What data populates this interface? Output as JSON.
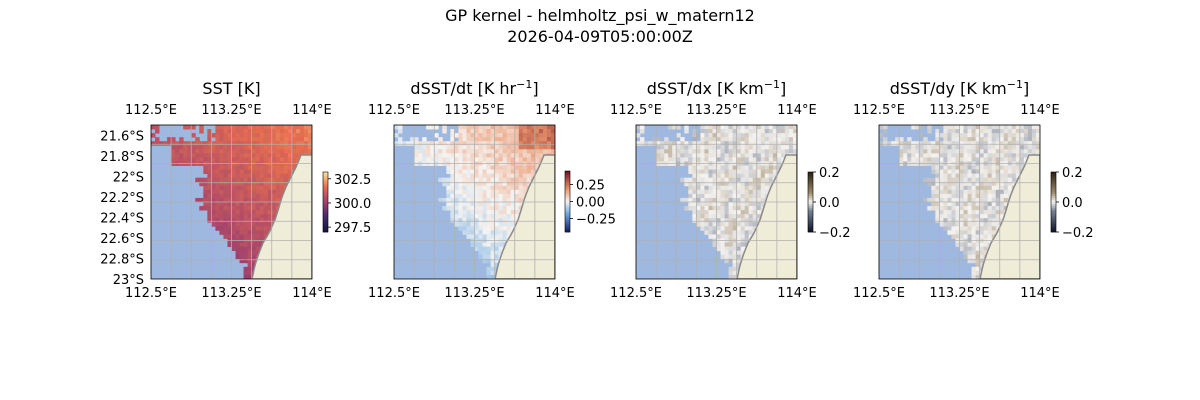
{
  "figure": {
    "title_line1": "GP kernel - helmholtz_psi_w_matern12",
    "title_line2": "2026-04-09T05:00:00Z"
  },
  "colors": {
    "ocean_mask": "#9fb8e0",
    "land": "#efecd8",
    "coastline": "#8a8a8a",
    "grid": "#b0b0b0"
  },
  "chart_data": [
    {
      "type": "heatmap",
      "title": "SST [K]",
      "xlabel": "",
      "ylabel": "",
      "xlim": [
        112.5,
        114.0
      ],
      "ylim": [
        -23.0,
        -21.5
      ],
      "x_ticks": [
        112.5,
        113.25,
        114.0
      ],
      "x_tick_labels": [
        "112.5°E",
        "113.25°E",
        "114°E"
      ],
      "y_ticks": [
        -21.6,
        -21.8,
        -22.0,
        -22.2,
        -22.4,
        -22.6,
        -22.8,
        -23.0
      ],
      "y_tick_labels": [
        "21.6°S",
        "21.8°S",
        "22°S",
        "22.2°S",
        "22.4°S",
        "22.6°S",
        "22.8°S",
        "23°S"
      ],
      "colorbar": {
        "min": 297.0,
        "max": 303.2,
        "ticks": [
          302.5,
          300.0,
          297.5
        ],
        "tick_labels": [
          "302.5",
          "300.0",
          "297.5"
        ],
        "colormap": "thermal"
      },
      "field": "sst",
      "grid": true
    },
    {
      "type": "heatmap",
      "title_main": "dSST/dt [K hr",
      "title_sup": "−1",
      "title_end": "]",
      "xlabel": "",
      "ylabel": "",
      "xlim": [
        112.5,
        114.0
      ],
      "ylim": [
        -23.0,
        -21.5
      ],
      "x_ticks": [
        112.5,
        113.25,
        114.0
      ],
      "x_tick_labels": [
        "112.5°E",
        "113.25°E",
        "114°E"
      ],
      "colorbar": {
        "min": -0.45,
        "max": 0.45,
        "ticks": [
          0.25,
          0.0,
          -0.25
        ],
        "tick_labels": [
          "0.25",
          "0.00",
          "−0.25"
        ],
        "colormap": "balance"
      },
      "field": "dt",
      "grid": true
    },
    {
      "type": "heatmap",
      "title_main": "dSST/dx [K km",
      "title_sup": "−1",
      "title_end": "]",
      "xlabel": "",
      "ylabel": "",
      "xlim": [
        112.5,
        114.0
      ],
      "ylim": [
        -23.0,
        -21.5
      ],
      "x_ticks": [
        112.5,
        113.25,
        114.0
      ],
      "x_tick_labels": [
        "112.5°E",
        "113.25°E",
        "114°E"
      ],
      "colorbar": {
        "min": -0.2,
        "max": 0.2,
        "ticks": [
          0.2,
          0.0,
          -0.2
        ],
        "tick_labels": [
          "0.2",
          "0.0",
          "−0.2"
        ],
        "colormap": "diff"
      },
      "field": "dx",
      "grid": true
    },
    {
      "type": "heatmap",
      "title_main": "dSST/dy [K km",
      "title_sup": "−1",
      "title_end": "]",
      "xlabel": "",
      "ylabel": "",
      "xlim": [
        112.5,
        114.0
      ],
      "ylim": [
        -23.0,
        -21.5
      ],
      "x_ticks": [
        112.5,
        113.25,
        114.0
      ],
      "x_tick_labels": [
        "112.5°E",
        "113.25°E",
        "114°E"
      ],
      "colorbar": {
        "min": -0.2,
        "max": 0.2,
        "ticks": [
          0.2,
          0.0,
          -0.2
        ],
        "tick_labels": [
          "0.2",
          "0.0",
          "−0.2"
        ],
        "colormap": "diff"
      },
      "field": "dy",
      "grid": true
    }
  ]
}
